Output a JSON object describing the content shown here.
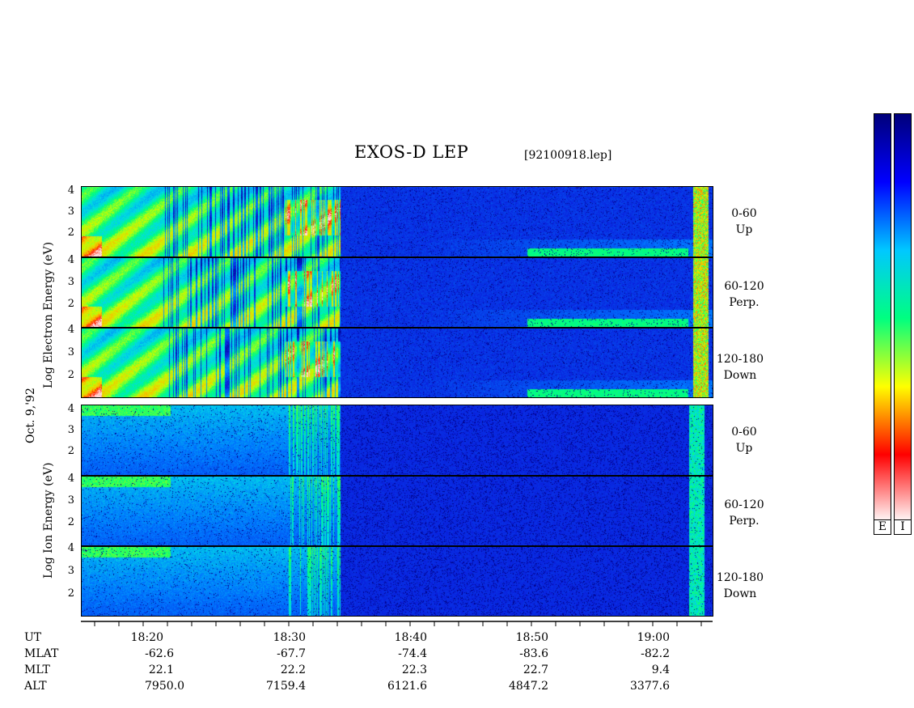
{
  "chart_data": {
    "type": "heatmap",
    "title": "EXOS-D LEP",
    "file_label": "[92100918.lep]",
    "date_label": "Oct. 9,'92",
    "x_axis": {
      "tick_labels": [
        "18:20",
        "18:30",
        "18:40",
        "18:50",
        "19:00"
      ],
      "range": [
        "18:13",
        "19:05"
      ]
    },
    "y_ticks": [
      "4",
      "3",
      "2"
    ],
    "groups": [
      {
        "ylabel": "Log  Electron  Energy (eV)",
        "species": "Electron",
        "panels": [
          {
            "pitch": "0-60",
            "direction": "Up"
          },
          {
            "pitch": "60-120",
            "direction": "Perp."
          },
          {
            "pitch": "120-180",
            "direction": "Down"
          }
        ]
      },
      {
        "ylabel": "Log  Ion  Energy (eV)",
        "species": "Ion",
        "panels": [
          {
            "pitch": "0-60",
            "direction": "Up"
          },
          {
            "pitch": "60-120",
            "direction": "Perp."
          },
          {
            "pitch": "120-180",
            "direction": "Down"
          }
        ]
      }
    ],
    "ephemeris": [
      {
        "name": "UT",
        "values": [
          "",
          "",
          "",
          "",
          ""
        ]
      },
      {
        "name": "MLAT",
        "values": [
          "-62.6",
          "-67.7",
          "-74.4",
          "-83.6",
          "-82.2"
        ]
      },
      {
        "name": "MLT",
        "values": [
          "22.1",
          "22.2",
          "22.3",
          "22.7",
          "9.4"
        ]
      },
      {
        "name": "ALT",
        "values": [
          "7950.0",
          "7159.4",
          "6121.6",
          "4847.2",
          "3377.6"
        ]
      }
    ],
    "colorbar": {
      "labels": [
        "E",
        "I"
      ],
      "colors": [
        "#00007a",
        "#0000ff",
        "#00c8ff",
        "#00ff80",
        "#ffff00",
        "#ff0000",
        "#ffffff"
      ]
    }
  }
}
